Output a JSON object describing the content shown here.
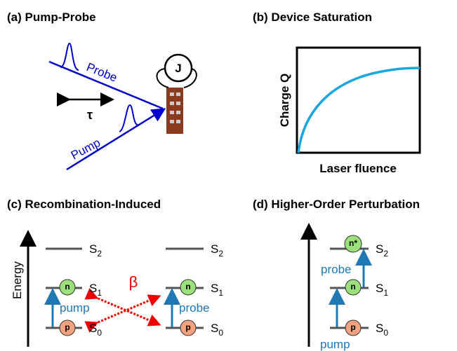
{
  "panel_a": {
    "title": "(a) Pump-Probe",
    "probe": "Probe",
    "pump": "Pump",
    "delay": "τ",
    "device": "J"
  },
  "panel_b": {
    "title": "(b) Device Saturation",
    "y_label": "Charge Q",
    "x_label": "Laser fluence"
  },
  "panel_c": {
    "title": "(c) Recombination-Induced",
    "axis_label": "Energy",
    "coupling": "β",
    "left": {
      "levels": [
        {
          "symbol": "S",
          "index": "2"
        },
        {
          "symbol": "S",
          "index": "1"
        },
        {
          "symbol": "S",
          "index": "0"
        }
      ],
      "particles": [
        "n",
        "p"
      ],
      "arrow": "pump"
    },
    "right": {
      "levels": [
        {
          "symbol": "S",
          "index": "2"
        },
        {
          "symbol": "S",
          "index": "1"
        },
        {
          "symbol": "S",
          "index": "0"
        }
      ],
      "particles": [
        "n",
        "p"
      ],
      "arrow": "probe"
    }
  },
  "panel_d": {
    "title": "(d) Higher-Order Perturbation",
    "levels": [
      {
        "symbol": "S",
        "index": "2"
      },
      {
        "symbol": "S",
        "index": "1"
      },
      {
        "symbol": "S",
        "index": "0"
      }
    ],
    "particles": [
      "n*",
      "n",
      "p"
    ],
    "arrows": [
      "probe",
      "pump"
    ]
  }
}
